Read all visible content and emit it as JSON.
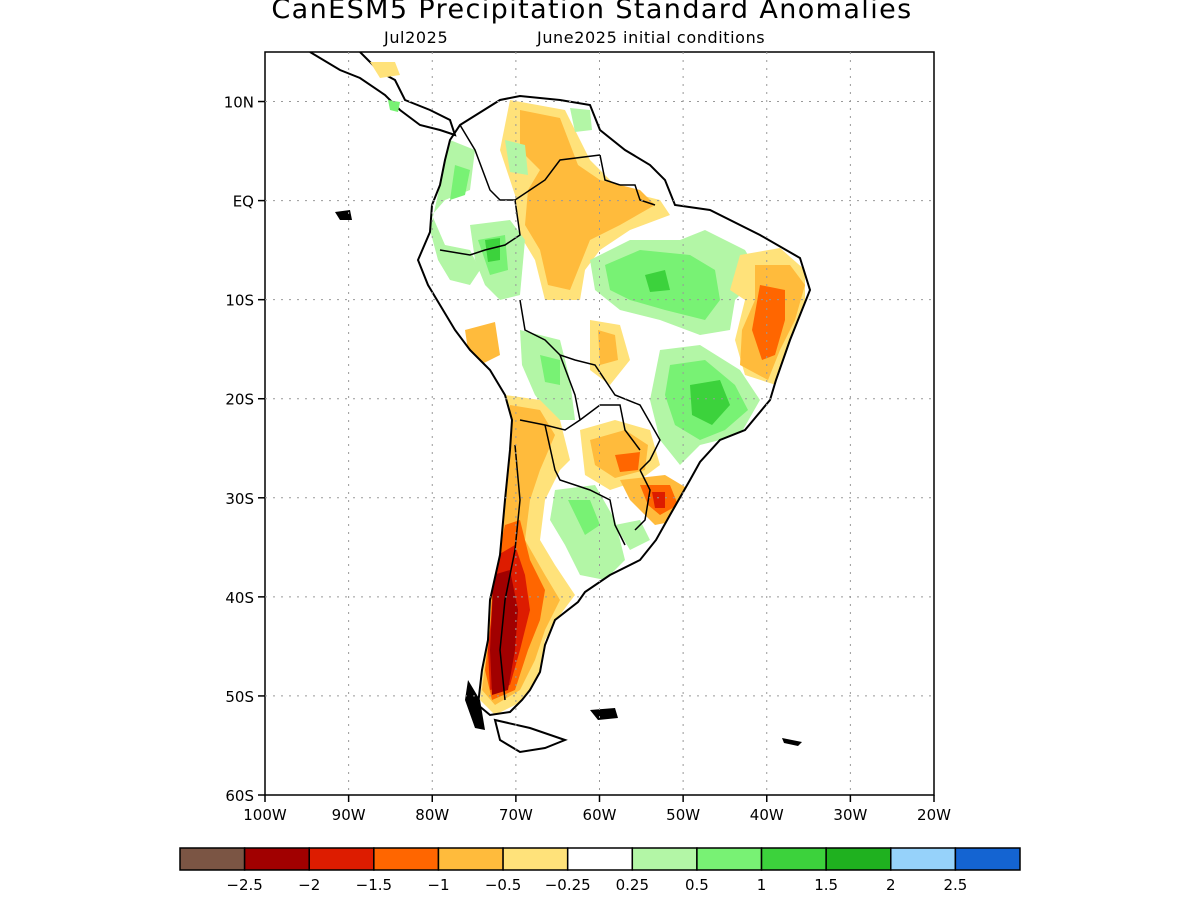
{
  "title": "CanESM5 Precipitation Standard Anomalies",
  "subtitle_month": "Jul2025",
  "subtitle_init": "June2025 initial conditions",
  "map": {
    "region": "South America",
    "lon_range": [
      -100,
      -20
    ],
    "lat_range": [
      -60,
      15
    ],
    "grid": true,
    "lat_ticks": [
      {
        "value": 10,
        "label": "10N"
      },
      {
        "value": 0,
        "label": "EQ"
      },
      {
        "value": -10,
        "label": "10S"
      },
      {
        "value": -20,
        "label": "20S"
      },
      {
        "value": -30,
        "label": "30S"
      },
      {
        "value": -40,
        "label": "40S"
      },
      {
        "value": -50,
        "label": "50S"
      },
      {
        "value": -60,
        "label": "60S"
      }
    ],
    "lon_ticks": [
      {
        "value": -100,
        "label": "100W"
      },
      {
        "value": -90,
        "label": "90W"
      },
      {
        "value": -80,
        "label": "80W"
      },
      {
        "value": -70,
        "label": "70W"
      },
      {
        "value": -60,
        "label": "60W"
      },
      {
        "value": -50,
        "label": "50W"
      },
      {
        "value": -40,
        "label": "40W"
      },
      {
        "value": -30,
        "label": "30W"
      },
      {
        "value": -20,
        "label": "20W"
      }
    ]
  },
  "colorbar": {
    "colors": [
      "#7b5544",
      "#a10000",
      "#dd1c00",
      "#ff6600",
      "#ffbb3c",
      "#ffe27a",
      "#ffffff",
      "#b3f6a6",
      "#78f274",
      "#3cd23c",
      "#1fb11f",
      "#96d2fa",
      "#1464d2"
    ],
    "labels": [
      "-2.5",
      "-2",
      "-1.5",
      "-1",
      "-0.5",
      "-0.25",
      "0.25",
      "0.5",
      "1",
      "1.5",
      "2",
      "2.5"
    ]
  },
  "colors": {
    "dry_light": "#ffe27a",
    "dry": "#ffbb3c",
    "dry_strong": "#ff6600",
    "dry_severe": "#dd1c00",
    "dry_extreme": "#a10000",
    "wet_light": "#b3f6a6",
    "wet": "#78f274",
    "wet_strong": "#3cd23c",
    "wet_severe": "#1fb11f"
  }
}
